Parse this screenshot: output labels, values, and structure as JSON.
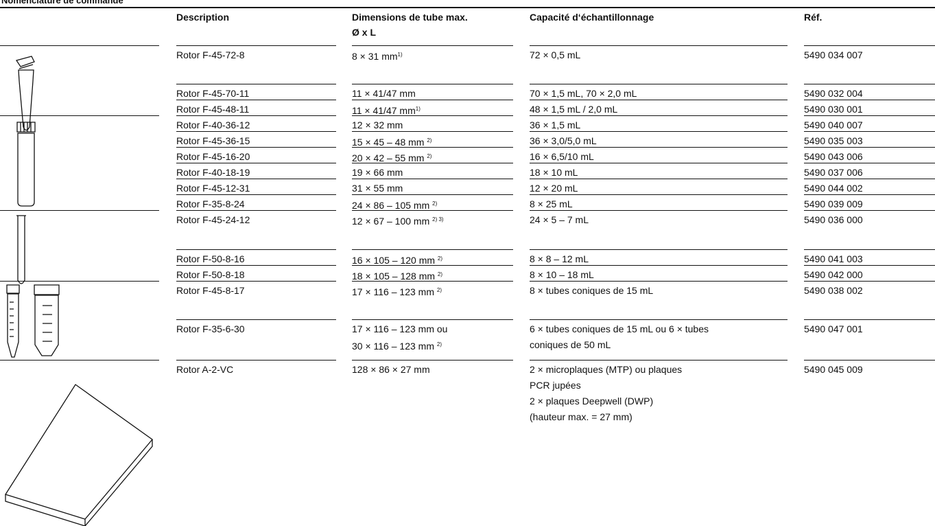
{
  "header": {
    "title": "Nomenclature de commande"
  },
  "table": {
    "columns": [
      "Description",
      "Dimensions de tube max.",
      "Ø x L",
      "Capacité d‘échantillonnage",
      "Réf."
    ],
    "rows": [
      {
        "description": "Rotor F-45-72-8",
        "dimensions": [
          "8 × 31 mm"
        ],
        "note": "1)",
        "capacity": [
          "72 × 0,5 mL"
        ],
        "ref": "5490 034 007"
      },
      {
        "description": "Rotor F-45-70-11",
        "dimensions": [
          "11 × 41/47 mm"
        ],
        "capacity": [
          "70 × 1,5 mL, 70 × 2,0 mL"
        ],
        "ref": "5490 032 004"
      },
      {
        "description": "Rotor F-45-48-11",
        "dimensions": [
          "11 × 41/47 mm"
        ],
        "note": "1)",
        "capacity": [
          "48 × 1,5 mL / 2,0 mL"
        ],
        "ref": "5490 030 001"
      },
      {
        "description": "Rotor F-40-36-12",
        "dimensions": [
          "12 × 32 mm"
        ],
        "capacity": [
          "36 × 1,5 mL"
        ],
        "ref": "5490 040 007"
      },
      {
        "description": "Rotor F-45-36-15",
        "dimensions": [
          "15 × 45 – 48 mm "
        ],
        "note": "2)",
        "capacity": [
          "36 × 3,0/5,0 mL"
        ],
        "ref": "5490 035 003"
      },
      {
        "description": "Rotor F-45-16-20",
        "dimensions": [
          "20 × 42 – 55 mm "
        ],
        "note": "2)",
        "capacity": [
          "16 × 6,5/10 mL"
        ],
        "ref": "5490 043 006"
      },
      {
        "description": "Rotor F-40-18-19",
        "dimensions": [
          "19 × 66 mm"
        ],
        "capacity": [
          "18 × 10 mL"
        ],
        "ref": "5490 037 006"
      },
      {
        "description": "Rotor F-45-12-31",
        "dimensions": [
          "31 × 55 mm"
        ],
        "capacity": [
          "12 × 20 mL"
        ],
        "ref": "5490 044 002"
      },
      {
        "description": "Rotor F-35-8-24",
        "dimensions": [
          "24 × 86 – 105 mm "
        ],
        "note": "2)",
        "capacity": [
          "8 × 25 mL"
        ],
        "ref": "5490 039 009"
      },
      {
        "description": "Rotor F-45-24-12",
        "dimensions": [
          "12 × 67 – 100 mm "
        ],
        "note": "2) 3)",
        "capacity": [
          "24 × 5 – 7 mL"
        ],
        "ref": "5490 036 000"
      },
      {
        "description": "Rotor F-50-8-16",
        "dimensions": [
          "16 × 105 – 120 mm "
        ],
        "note": "2)",
        "capacity": [
          "8 × 8 – 12 mL"
        ],
        "ref": "5490 041 003"
      },
      {
        "description": "Rotor F-50-8-18",
        "dimensions": [
          "18 × 105 – 128 mm "
        ],
        "note": "2)",
        "capacity": [
          "8 × 10 – 18 mL"
        ],
        "ref": "5490 042 000"
      },
      {
        "description": "Rotor F-45-8-17",
        "dimensions": [
          "17 × 116 – 123 mm "
        ],
        "note": "2)",
        "capacity": [
          "8 × tubes coniques de 15 mL"
        ],
        "ref": "5490 038 002"
      },
      {
        "description": "Rotor F-35-6-30",
        "dimensions": [
          "17 × 116 – 123 mm ou",
          "30 × 116 – 123 mm "
        ],
        "note": "2)",
        "capacity": [
          "6 × tubes coniques de 15 mL ou 6 × tubes",
          "coniques de 50 mL"
        ],
        "ref": "5490 047 001"
      },
      {
        "description": "Rotor A-2-VC",
        "dimensions": [
          "128 × 86 × 27 mm"
        ],
        "capacity": [
          "2 × microplaques (MTP) ou plaques",
          "PCR jupées",
          "2 × plaques Deepwell (DWP)",
          "(hauteur max. = 27 mm)"
        ],
        "ref": "5490 045 009"
      }
    ]
  }
}
